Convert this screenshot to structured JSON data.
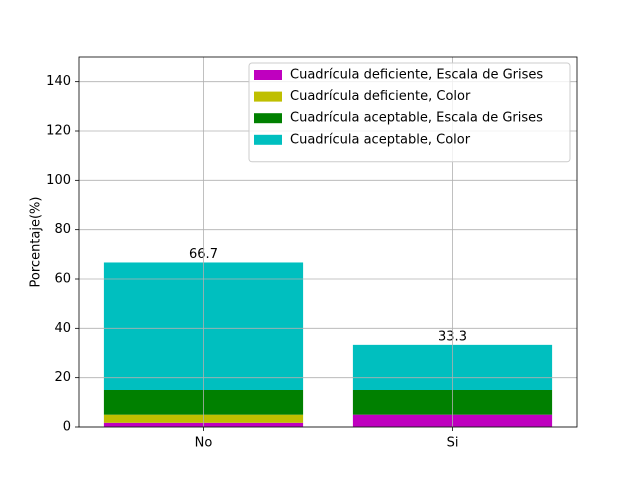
{
  "chart_data": {
    "type": "stacked-bar",
    "y_label": "Porcentaje(%)",
    "categories": [
      "No",
      "Si"
    ],
    "series": [
      {
        "name": "Cuadrícula deficiente, Escala de Grises",
        "color": "#bf00bf",
        "values": [
          1.7,
          5
        ]
      },
      {
        "name": "Cuadrícula deficiente, Color",
        "color": "#bfbf00",
        "values": [
          3.3,
          0
        ]
      },
      {
        "name": "Cuadrícula aceptable, Escala de Grises",
        "color": "#008000",
        "values": [
          10,
          10
        ]
      },
      {
        "name": "Cuadrícula aceptable, Color",
        "color": "#00bfbf",
        "values": [
          51.7,
          18.3
        ]
      }
    ],
    "total_labels": [
      "66.7",
      "33.3"
    ],
    "ylim": [
      0,
      150
    ],
    "yticks": [
      0,
      20,
      40,
      60,
      80,
      100,
      120,
      140
    ],
    "grid": true,
    "legend": "upper-right"
  }
}
